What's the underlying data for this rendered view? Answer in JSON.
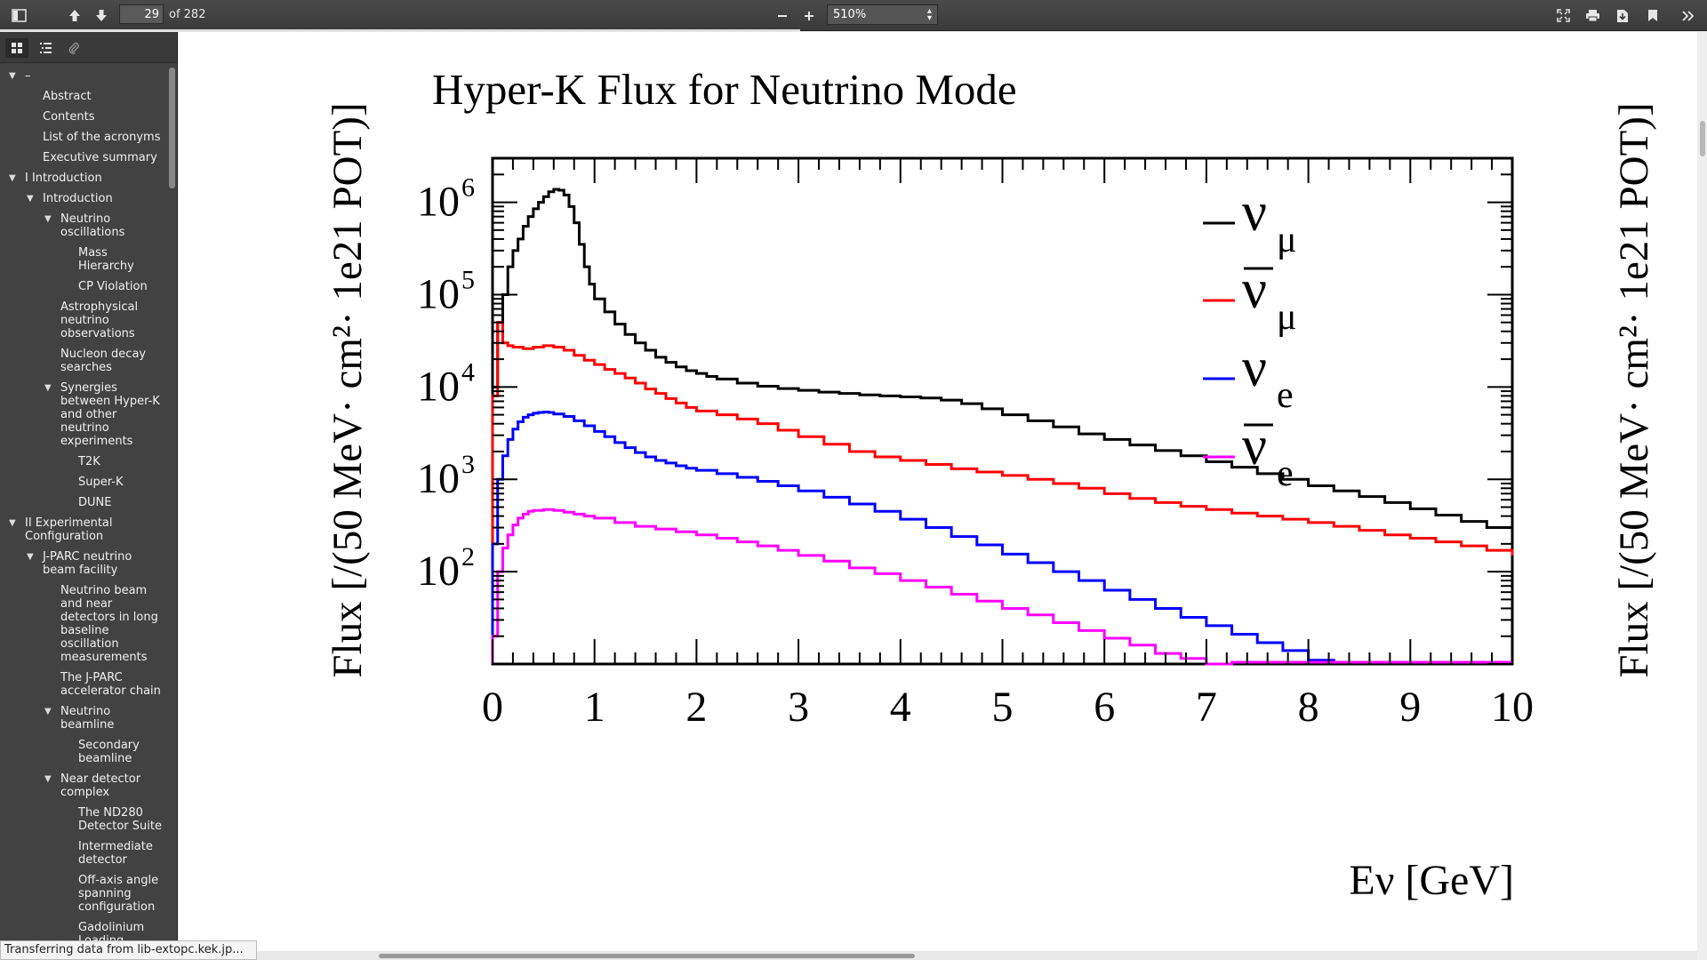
{
  "toolbar": {
    "page_number": "29",
    "page_total": "of 282",
    "zoom": "510%"
  },
  "outline": [
    {
      "label": "–",
      "level": 0,
      "expanded": true
    },
    {
      "label": "Abstract",
      "level": 1
    },
    {
      "label": "Contents",
      "level": 1
    },
    {
      "label": "List of the acronyms",
      "level": 1
    },
    {
      "label": "Executive summary",
      "level": 1
    },
    {
      "label": "I Introduction",
      "level": 0,
      "expanded": true
    },
    {
      "label": "Introduction",
      "level": 1,
      "expanded": true
    },
    {
      "label": "Neutrino oscillations",
      "level": 2,
      "expanded": true
    },
    {
      "label": "Mass Hierarchy",
      "level": 3
    },
    {
      "label": "CP Violation",
      "level": 3
    },
    {
      "label": "Astrophysical neutrino observations",
      "level": 2
    },
    {
      "label": "Nucleon decay searches",
      "level": 2
    },
    {
      "label": "Synergies between Hyper-K and other neutrino experiments",
      "level": 2,
      "expanded": true
    },
    {
      "label": "T2K",
      "level": 3
    },
    {
      "label": "Super-K",
      "level": 3
    },
    {
      "label": "DUNE",
      "level": 3
    },
    {
      "label": "II Experimental Configuration",
      "level": 0,
      "expanded": true
    },
    {
      "label": "J-PARC neutrino beam facility",
      "level": 1,
      "expanded": true
    },
    {
      "label": "Neutrino beam and near detectors in long baseline oscillation measurements",
      "level": 2
    },
    {
      "label": "The J-PARC accelerator chain",
      "level": 2
    },
    {
      "label": "Neutrino beamline",
      "level": 2,
      "expanded": true
    },
    {
      "label": "Secondary beamline",
      "level": 3
    },
    {
      "label": "Near detector complex",
      "level": 2,
      "expanded": true
    },
    {
      "label": "The ND280 Detector Suite",
      "level": 3
    },
    {
      "label": "Intermediate detector",
      "level": 3
    },
    {
      "label": "Off-axis angle spanning configuration",
      "level": 3
    },
    {
      "label": "Gadolinium Loading",
      "level": 3
    }
  ],
  "status_text": "Transferring data from lib-extopc.kek.jp...",
  "chart_data": {
    "type": "line",
    "title": "Hyper-K Flux for Neutrino Mode",
    "xlabel": "Eν [GeV]",
    "ylabel": "Flux [/(50 MeV· cm²· 1e21 POT)]",
    "xlim": [
      0,
      10
    ],
    "ylim": [
      10,
      3000000
    ],
    "yscale": "log",
    "x_ticks": [
      "0",
      "1",
      "2",
      "3",
      "4",
      "5",
      "6",
      "7",
      "8",
      "9",
      "10"
    ],
    "y_ticks": [
      {
        "value": 100,
        "label": "10",
        "exp": "2"
      },
      {
        "value": 1000,
        "label": "10",
        "exp": "3"
      },
      {
        "value": 10000,
        "label": "10",
        "exp": "4"
      },
      {
        "value": 100000,
        "label": "10",
        "exp": "5"
      },
      {
        "value": 1000000,
        "label": "10",
        "exp": "6"
      }
    ],
    "legend_position": "top-right",
    "series": [
      {
        "name": "νμ",
        "symbol": "ν",
        "sub": "μ",
        "bar": false,
        "color": "#000000",
        "points": [
          [
            0,
            10000
          ],
          [
            0.05,
            50000
          ],
          [
            0.1,
            100000
          ],
          [
            0.15,
            200000
          ],
          [
            0.2,
            300000
          ],
          [
            0.25,
            400000
          ],
          [
            0.3,
            550000
          ],
          [
            0.35,
            700000
          ],
          [
            0.4,
            850000
          ],
          [
            0.45,
            1000000
          ],
          [
            0.5,
            1150000
          ],
          [
            0.55,
            1300000
          ],
          [
            0.6,
            1380000
          ],
          [
            0.65,
            1350000
          ],
          [
            0.7,
            1200000
          ],
          [
            0.75,
            900000
          ],
          [
            0.8,
            600000
          ],
          [
            0.85,
            350000
          ],
          [
            0.9,
            200000
          ],
          [
            0.95,
            130000
          ],
          [
            1.0,
            90000
          ],
          [
            1.1,
            65000
          ],
          [
            1.2,
            48000
          ],
          [
            1.3,
            37000
          ],
          [
            1.4,
            30000
          ],
          [
            1.5,
            25000
          ],
          [
            1.6,
            21000
          ],
          [
            1.7,
            18500
          ],
          [
            1.8,
            16500
          ],
          [
            1.9,
            15000
          ],
          [
            2.0,
            14000
          ],
          [
            2.1,
            13000
          ],
          [
            2.2,
            12200
          ],
          [
            2.4,
            11000
          ],
          [
            2.6,
            10200
          ],
          [
            2.8,
            9600
          ],
          [
            3.0,
            9200
          ],
          [
            3.2,
            8800
          ],
          [
            3.4,
            8500
          ],
          [
            3.6,
            8200
          ],
          [
            3.8,
            8000
          ],
          [
            4.0,
            7800
          ],
          [
            4.2,
            7600
          ],
          [
            4.4,
            7200
          ],
          [
            4.6,
            6600
          ],
          [
            4.8,
            5800
          ],
          [
            5.0,
            5000
          ],
          [
            5.25,
            4300
          ],
          [
            5.5,
            3700
          ],
          [
            5.75,
            3100
          ],
          [
            6.0,
            2700
          ],
          [
            6.25,
            2350
          ],
          [
            6.5,
            2050
          ],
          [
            6.75,
            1800
          ],
          [
            7.0,
            1550
          ],
          [
            7.25,
            1350
          ],
          [
            7.5,
            1150
          ],
          [
            7.75,
            1000
          ],
          [
            8.0,
            850
          ],
          [
            8.25,
            750
          ],
          [
            8.5,
            650
          ],
          [
            8.75,
            560
          ],
          [
            9.0,
            480
          ],
          [
            9.25,
            410
          ],
          [
            9.5,
            350
          ],
          [
            9.75,
            300
          ],
          [
            10.0,
            250
          ]
        ]
      },
      {
        "name": "ν̄μ",
        "symbol": "ν",
        "sub": "μ",
        "bar": true,
        "color": "#ff0000",
        "points": [
          [
            0,
            8000
          ],
          [
            0.05,
            50000
          ],
          [
            0.1,
            30000
          ],
          [
            0.15,
            28000
          ],
          [
            0.2,
            27000
          ],
          [
            0.3,
            26000
          ],
          [
            0.4,
            27000
          ],
          [
            0.5,
            28000
          ],
          [
            0.6,
            27000
          ],
          [
            0.7,
            25000
          ],
          [
            0.8,
            22000
          ],
          [
            0.9,
            19500
          ],
          [
            1.0,
            17500
          ],
          [
            1.1,
            15500
          ],
          [
            1.2,
            14000
          ],
          [
            1.3,
            12500
          ],
          [
            1.4,
            11000
          ],
          [
            1.5,
            9500
          ],
          [
            1.6,
            8500
          ],
          [
            1.7,
            7500
          ],
          [
            1.8,
            6700
          ],
          [
            1.9,
            6000
          ],
          [
            2.0,
            5500
          ],
          [
            2.2,
            5000
          ],
          [
            2.4,
            4500
          ],
          [
            2.6,
            4000
          ],
          [
            2.8,
            3400
          ],
          [
            3.0,
            2900
          ],
          [
            3.25,
            2400
          ],
          [
            3.5,
            2000
          ],
          [
            3.75,
            1750
          ],
          [
            4.0,
            1600
          ],
          [
            4.25,
            1450
          ],
          [
            4.5,
            1300
          ],
          [
            4.75,
            1200
          ],
          [
            5.0,
            1100
          ],
          [
            5.25,
            1000
          ],
          [
            5.5,
            900
          ],
          [
            5.75,
            800
          ],
          [
            6.0,
            700
          ],
          [
            6.25,
            620
          ],
          [
            6.5,
            560
          ],
          [
            6.75,
            510
          ],
          [
            7.0,
            470
          ],
          [
            7.25,
            430
          ],
          [
            7.5,
            400
          ],
          [
            7.75,
            370
          ],
          [
            8.0,
            340
          ],
          [
            8.25,
            310
          ],
          [
            8.5,
            280
          ],
          [
            8.75,
            250
          ],
          [
            9.0,
            230
          ],
          [
            9.25,
            210
          ],
          [
            9.5,
            190
          ],
          [
            9.75,
            170
          ],
          [
            10.0,
            150
          ]
        ]
      },
      {
        "name": "νe",
        "symbol": "ν",
        "sub": "e",
        "bar": false,
        "color": "#0000ff",
        "points": [
          [
            0,
            200
          ],
          [
            0.05,
            1000
          ],
          [
            0.1,
            1800
          ],
          [
            0.15,
            2700
          ],
          [
            0.2,
            3500
          ],
          [
            0.25,
            4200
          ],
          [
            0.3,
            4700
          ],
          [
            0.35,
            5000
          ],
          [
            0.4,
            5200
          ],
          [
            0.45,
            5300
          ],
          [
            0.5,
            5350
          ],
          [
            0.55,
            5300
          ],
          [
            0.6,
            5100
          ],
          [
            0.7,
            4800
          ],
          [
            0.8,
            4300
          ],
          [
            0.9,
            3800
          ],
          [
            1.0,
            3300
          ],
          [
            1.1,
            2900
          ],
          [
            1.2,
            2500
          ],
          [
            1.3,
            2200
          ],
          [
            1.4,
            1950
          ],
          [
            1.5,
            1750
          ],
          [
            1.6,
            1600
          ],
          [
            1.7,
            1500
          ],
          [
            1.8,
            1400
          ],
          [
            1.9,
            1320
          ],
          [
            2.0,
            1250
          ],
          [
            2.2,
            1150
          ],
          [
            2.4,
            1050
          ],
          [
            2.6,
            950
          ],
          [
            2.8,
            850
          ],
          [
            3.0,
            750
          ],
          [
            3.25,
            640
          ],
          [
            3.5,
            540
          ],
          [
            3.75,
            450
          ],
          [
            4.0,
            370
          ],
          [
            4.25,
            300
          ],
          [
            4.5,
            240
          ],
          [
            4.75,
            195
          ],
          [
            5.0,
            155
          ],
          [
            5.25,
            125
          ],
          [
            5.5,
            100
          ],
          [
            5.75,
            80
          ],
          [
            6.0,
            63
          ],
          [
            6.25,
            50
          ],
          [
            6.5,
            40
          ],
          [
            6.75,
            32
          ],
          [
            7.0,
            26
          ],
          [
            7.25,
            21
          ],
          [
            7.5,
            17
          ],
          [
            7.75,
            14
          ],
          [
            8.0,
            11
          ]
        ]
      },
      {
        "name": "ν̄e",
        "symbol": "ν",
        "sub": "e",
        "bar": true,
        "color": "#ff00ff",
        "points": [
          [
            0,
            20
          ],
          [
            0.05,
            100
          ],
          [
            0.1,
            180
          ],
          [
            0.15,
            250
          ],
          [
            0.2,
            320
          ],
          [
            0.25,
            380
          ],
          [
            0.3,
            420
          ],
          [
            0.35,
            450
          ],
          [
            0.4,
            460
          ],
          [
            0.5,
            470
          ],
          [
            0.6,
            460
          ],
          [
            0.7,
            440
          ],
          [
            0.8,
            420
          ],
          [
            0.9,
            400
          ],
          [
            1.0,
            380
          ],
          [
            1.2,
            340
          ],
          [
            1.4,
            310
          ],
          [
            1.6,
            290
          ],
          [
            1.8,
            270
          ],
          [
            2.0,
            250
          ],
          [
            2.2,
            230
          ],
          [
            2.4,
            210
          ],
          [
            2.6,
            190
          ],
          [
            2.8,
            170
          ],
          [
            3.0,
            150
          ],
          [
            3.25,
            130
          ],
          [
            3.5,
            110
          ],
          [
            3.75,
            95
          ],
          [
            4.0,
            80
          ],
          [
            4.25,
            68
          ],
          [
            4.5,
            57
          ],
          [
            4.75,
            48
          ],
          [
            5.0,
            40
          ],
          [
            5.25,
            34
          ],
          [
            5.5,
            28
          ],
          [
            5.75,
            23
          ],
          [
            6.0,
            19
          ],
          [
            6.25,
            16
          ],
          [
            6.5,
            13
          ],
          [
            6.75,
            11.5
          ],
          [
            7.0,
            10
          ]
        ]
      }
    ]
  }
}
